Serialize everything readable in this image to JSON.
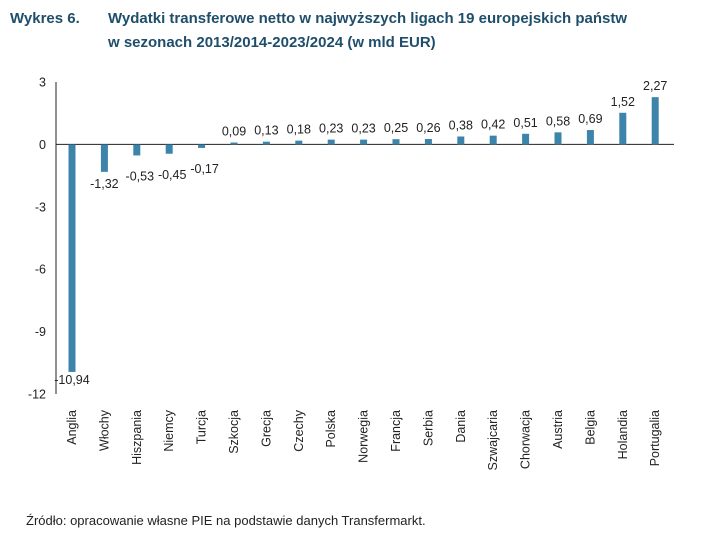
{
  "title": {
    "label": "Wykres 6.",
    "line1": "Wydatki transferowe netto w najwyższych ligach 19 europejskich państw",
    "line2": "w sezonach 2013/2014-2023/2024 (w mld EUR)"
  },
  "source": "Źródło: opracowanie własne PIE na podstawie danych Transfermarkt.",
  "colors": {
    "bar": "#3d84aa",
    "axis": "#222222",
    "title": "#1f4e6b"
  },
  "chart_data": {
    "type": "bar",
    "title": "Wydatki transferowe netto w najwyższych ligach 19 europejskich państw w sezonach 2013/2014-2023/2024 (w mld EUR)",
    "xlabel": "",
    "ylabel": "",
    "ylim": [
      -12,
      3
    ],
    "yticks": [
      3,
      0,
      -3,
      -6,
      -9,
      -12
    ],
    "grid": false,
    "categories": [
      "Anglia",
      "Włochy",
      "Hiszpania",
      "Niemcy",
      "Turcja",
      "Szkocja",
      "Grecja",
      "Czechy",
      "Polska",
      "Norwegia",
      "Francja",
      "Serbia",
      "Dania",
      "Szwajcaria",
      "Chorwacja",
      "Austria",
      "Belgia",
      "Holandia",
      "Portugalia"
    ],
    "values": [
      -10.94,
      -1.32,
      -0.53,
      -0.45,
      -0.17,
      0.09,
      0.13,
      0.18,
      0.23,
      0.23,
      0.25,
      0.26,
      0.38,
      0.42,
      0.51,
      0.58,
      0.69,
      1.52,
      2.27
    ],
    "value_labels": [
      "-10,94",
      "-1,32",
      "-0,53",
      "-0,45",
      "-0,17",
      "0,09",
      "0,13",
      "0,18",
      "0,23",
      "0,23",
      "0,25",
      "0,26",
      "0,38",
      "0,42",
      "0,51",
      "0,58",
      "0,69",
      "1,52",
      "2,27"
    ]
  }
}
